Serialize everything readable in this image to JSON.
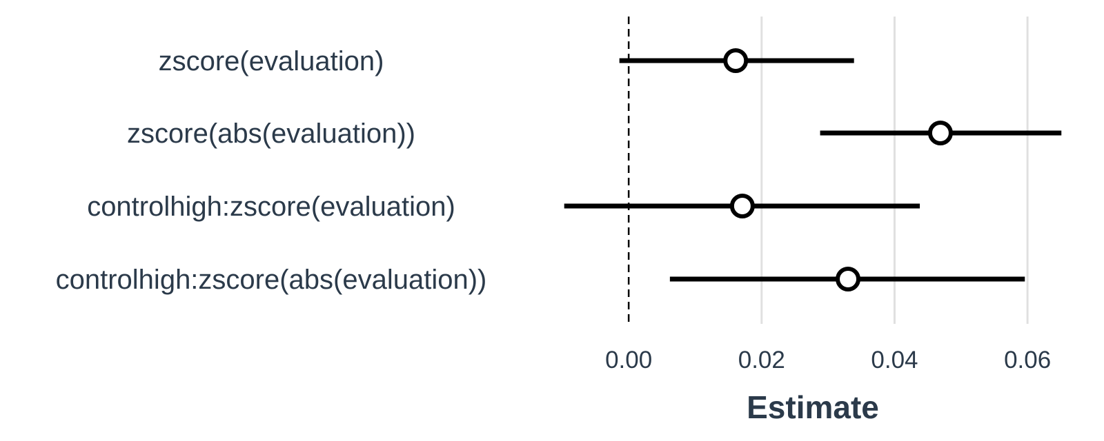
{
  "chart_data": {
    "type": "scatter",
    "subtype": "coefficient-plot",
    "xlabel": "Estimate",
    "ylabel": "",
    "title": "",
    "xlim": [
      -0.0105,
      0.0658
    ],
    "xticks": [
      0.0,
      0.02,
      0.04,
      0.06
    ],
    "xtick_labels": [
      "0.00",
      "0.02",
      "0.04",
      "0.06"
    ],
    "grid": "vertical major",
    "reference_line": {
      "x": 0,
      "style": "dashed"
    },
    "terms": [
      {
        "label": "zscore(evaluation)",
        "estimate": 0.0161,
        "conf_low": -0.0014,
        "conf_high": 0.0339
      },
      {
        "label": "zscore(abs(evaluation))",
        "estimate": 0.0469,
        "conf_low": 0.0288,
        "conf_high": 0.0651
      },
      {
        "label": "controlhigh:zscore(evaluation)",
        "estimate": 0.0171,
        "conf_low": -0.0097,
        "conf_high": 0.0438
      },
      {
        "label": "controlhigh:zscore(abs(evaluation))",
        "estimate": 0.033,
        "conf_low": 0.0062,
        "conf_high": 0.0596
      }
    ],
    "colors": {
      "interval": "#000000",
      "point_fill": "#ffffff",
      "point_stroke": "#000000",
      "grid": "#e0e0e0",
      "text": "#2b3a4a",
      "reference": "#000000"
    }
  }
}
